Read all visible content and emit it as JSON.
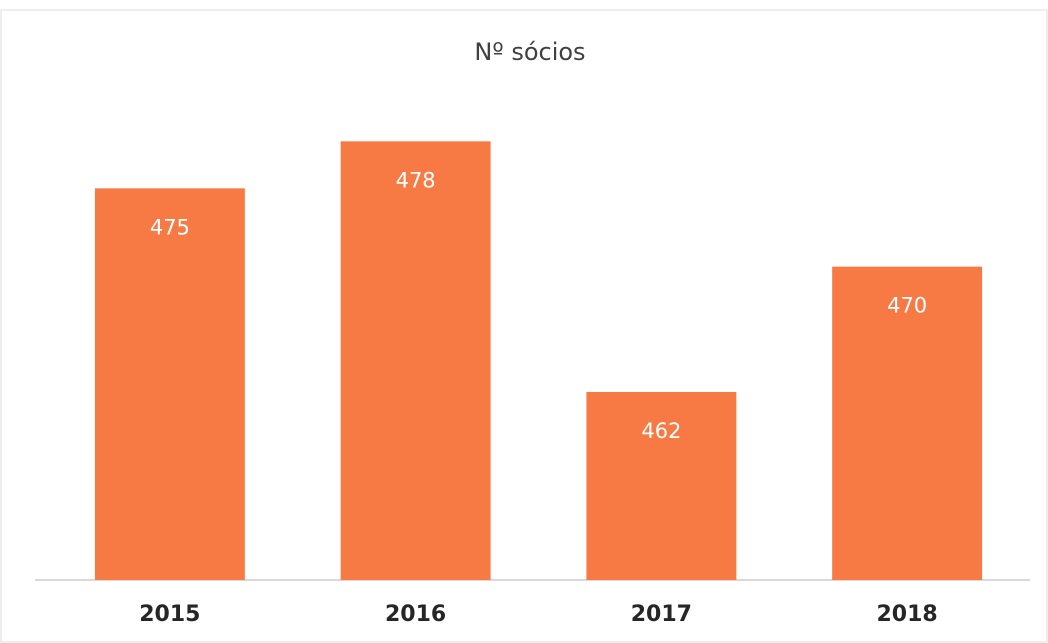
{
  "chart_data": {
    "type": "bar",
    "title": "Nº sócios",
    "categories": [
      "2015",
      "2016",
      "2017",
      "2018"
    ],
    "values": [
      475,
      478,
      462,
      470
    ],
    "color": "#f77a45",
    "ylim": [
      450,
      480
    ]
  }
}
